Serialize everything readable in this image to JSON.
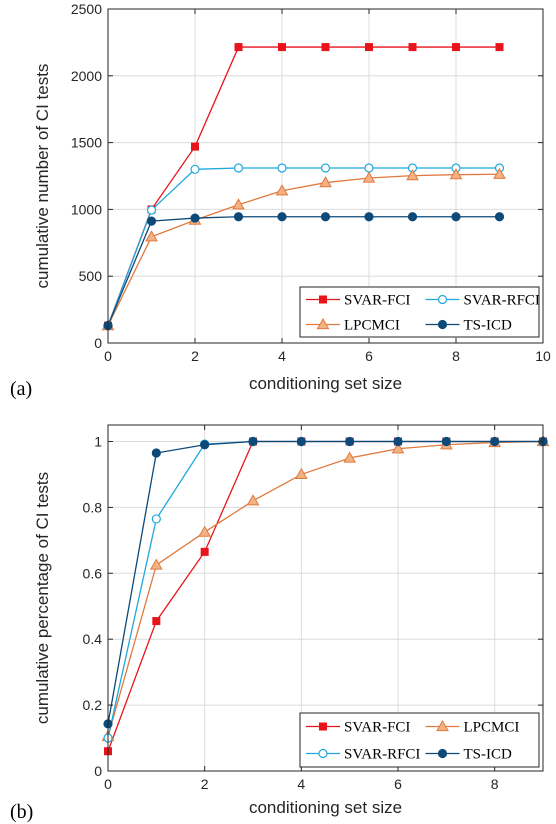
{
  "chart_data": [
    {
      "type": "line",
      "panel_label": "(a)",
      "xlabel": "conditioning set size",
      "ylabel": "cumulative number of CI tests",
      "xlim": [
        0,
        10
      ],
      "ylim": [
        0,
        2500
      ],
      "xticks": [
        0,
        2,
        4,
        6,
        8,
        10
      ],
      "yticks": [
        0,
        500,
        1000,
        1500,
        2000,
        2500
      ],
      "xtick_labels": [
        "0",
        "2",
        "4",
        "6",
        "8",
        "10"
      ],
      "ytick_labels": [
        "0",
        "500",
        "1000",
        "1500",
        "2000",
        "2500"
      ],
      "grid": true,
      "legend_position": "bottom-right",
      "legend_columns": 2,
      "x": [
        0,
        1,
        2,
        3,
        4,
        5,
        6,
        7,
        8,
        9
      ],
      "series": [
        {
          "name": "SVAR-FCI",
          "color": "#e8141c",
          "marker": "square",
          "filled": true,
          "values": [
            130,
            1000,
            1470,
            2215,
            2215,
            2215,
            2215,
            2215,
            2215,
            2215
          ]
        },
        {
          "name": "SVAR-RFCI",
          "color": "#1fa8dc",
          "marker": "circle",
          "filled": false,
          "values": [
            130,
            995,
            1300,
            1310,
            1310,
            1310,
            1310,
            1310,
            1310,
            1310
          ]
        },
        {
          "name": "LPCMCI",
          "color": "#e07a3f",
          "marker": "triangle",
          "filled": true,
          "fill": "#f4b183",
          "values": [
            130,
            795,
            920,
            1035,
            1140,
            1200,
            1235,
            1253,
            1260,
            1263
          ]
        },
        {
          "name": "TS-ICD",
          "color": "#0d4a7a",
          "marker": "circle",
          "filled": true,
          "values": [
            130,
            912,
            935,
            945,
            945,
            945,
            945,
            945,
            945,
            945
          ]
        }
      ]
    },
    {
      "type": "line",
      "panel_label": "(b)",
      "xlabel": "conditioning set size",
      "ylabel": "cumulative percentage of CI tests",
      "xlim": [
        0,
        9
      ],
      "ylim": [
        0,
        1.05
      ],
      "xticks": [
        0,
        2,
        4,
        6,
        8
      ],
      "yticks": [
        0,
        0.2,
        0.4,
        0.6,
        0.8,
        1
      ],
      "xtick_labels": [
        "0",
        "2",
        "4",
        "6",
        "8"
      ],
      "ytick_labels": [
        "0",
        "0.2",
        "0.4",
        "0.6",
        "0.8",
        "1"
      ],
      "grid": true,
      "legend_position": "bottom-right",
      "legend_columns": 2,
      "x": [
        0,
        1,
        2,
        3,
        4,
        5,
        6,
        7,
        8,
        9
      ],
      "series": [
        {
          "name": "SVAR-FCI",
          "color": "#e8141c",
          "marker": "square",
          "filled": true,
          "values": [
            0.06,
            0.455,
            0.665,
            1.0,
            1.0,
            1.0,
            1.0,
            1.0,
            1.0,
            1.0
          ]
        },
        {
          "name": "LPCMCI",
          "color": "#e07a3f",
          "marker": "triangle",
          "filled": true,
          "fill": "#f4b183",
          "values": [
            0.105,
            0.625,
            0.725,
            0.82,
            0.9,
            0.95,
            0.978,
            0.99,
            0.997,
            1.0
          ]
        },
        {
          "name": "SVAR-RFCI",
          "color": "#1fa8dc",
          "marker": "circle",
          "filled": false,
          "values": [
            0.1,
            0.765,
            0.992,
            1.0,
            1.0,
            1.0,
            1.0,
            1.0,
            1.0,
            1.0
          ]
        },
        {
          "name": "TS-ICD",
          "color": "#0d4a7a",
          "marker": "circle",
          "filled": true,
          "values": [
            0.143,
            0.965,
            0.99,
            1.0,
            1.0,
            1.0,
            1.0,
            1.0,
            1.0,
            1.0
          ]
        }
      ]
    }
  ]
}
